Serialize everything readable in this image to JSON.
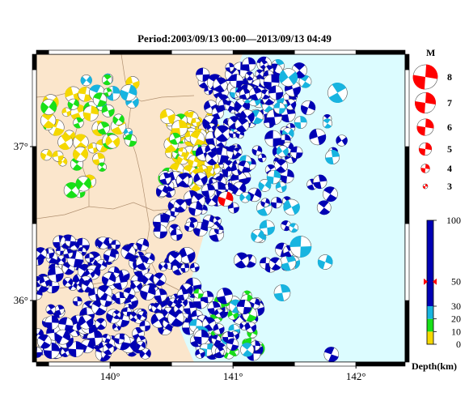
{
  "title": "Period:2003/09/13 00:00––2013/09/13 04:49",
  "map": {
    "lon_range": [
      139.4,
      142.4
    ],
    "lat_range": [
      35.6,
      37.6
    ],
    "lon_ticks": [
      {
        "value": 140,
        "label": "140°"
      },
      {
        "value": 141,
        "label": "141°"
      },
      {
        "value": 142,
        "label": "142°"
      }
    ],
    "lat_ticks": [
      {
        "value": 36,
        "label": "36°"
      },
      {
        "value": 37,
        "label": "37°"
      }
    ],
    "land_color": "#fbe6cc",
    "sea_color": "#dcfcff"
  },
  "magnitude_legend": {
    "title": "M",
    "items": [
      {
        "m": 8,
        "label": "8"
      },
      {
        "m": 7,
        "label": "7"
      },
      {
        "m": 6,
        "label": "6"
      },
      {
        "m": 5,
        "label": "5"
      },
      {
        "m": 4,
        "label": "4"
      },
      {
        "m": 3,
        "label": "3"
      }
    ],
    "color": "#ff0000"
  },
  "depth_legend": {
    "title": "Depth(km)",
    "ticks": [
      {
        "depth": 100,
        "label": "100"
      },
      {
        "depth": 50,
        "label": "50"
      },
      {
        "depth": 30,
        "label": "30"
      },
      {
        "depth": 20,
        "label": "20"
      },
      {
        "depth": 10,
        "label": "10"
      },
      {
        "depth": 0,
        "label": "0"
      }
    ],
    "bands": [
      {
        "from": 0,
        "to": 10,
        "color": "#f5d800"
      },
      {
        "from": 10,
        "to": 20,
        "color": "#18e018"
      },
      {
        "from": 20,
        "to": 30,
        "color": "#18b4e0"
      },
      {
        "from": 30,
        "to": 100,
        "color": "#0000b4"
      }
    ],
    "marker_depth": 50
  },
  "events_sample": [
    {
      "lon": 140.94,
      "lat": 36.66,
      "depth": 50,
      "m": 5.4,
      "color": "#ff0000"
    }
  ]
}
